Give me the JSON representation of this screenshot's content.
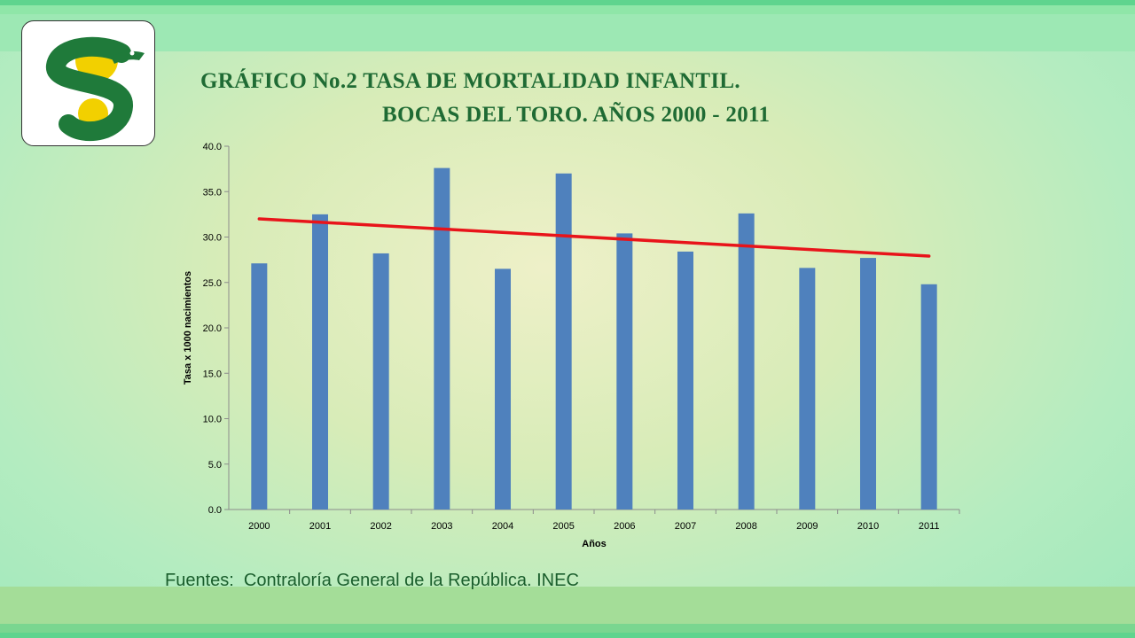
{
  "title": {
    "line1": "GRÁFICO No.2 TASA DE MORTALIDAD INFANTIL.",
    "line2": "BOCAS DEL TORO. AÑOS 2000 - 2011"
  },
  "source": "Fuentes:  Contraloría General de la República. INEC",
  "colors": {
    "bar": "#4f81bd",
    "trendline": "#e8141a",
    "title": "#1f6b34",
    "logo_green": "#1f7a3a",
    "logo_yellow": "#f2d000"
  },
  "logo": {
    "icon": "serpent-s-logo"
  },
  "chart_data": {
    "type": "bar",
    "title": "GRÁFICO No.2 TASA DE MORTALIDAD INFANTIL. BOCAS DEL TORO. AÑOS 2000 - 2011",
    "xlabel": "Años",
    "ylabel": "Tasa x 1000 nacimientos",
    "categories": [
      "2000",
      "2001",
      "2002",
      "2003",
      "2004",
      "2005",
      "2006",
      "2007",
      "2008",
      "2009",
      "2010",
      "2011"
    ],
    "series": [
      {
        "values": [
          27.1,
          32.5,
          28.2,
          37.6,
          26.5,
          37.0,
          30.4,
          28.4,
          32.6,
          26.6,
          27.7,
          24.8
        ]
      }
    ],
    "trendline": {
      "type": "linear",
      "start": 32.0,
      "end": 27.9
    },
    "ylim": [
      0,
      40
    ],
    "yticks": [
      "0.0",
      "5.0",
      "10.0",
      "15.0",
      "20.0",
      "25.0",
      "30.0",
      "35.0",
      "40.0"
    ],
    "grid": false,
    "legend": "none"
  }
}
